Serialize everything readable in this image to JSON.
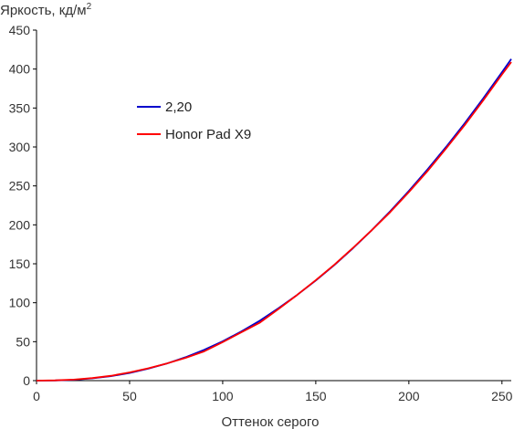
{
  "chart_data": {
    "type": "line",
    "ylabel": "Яркость, кд/м",
    "ylabel_superscript": "2",
    "xlabel": "Оттенок серого",
    "xlim": [
      0,
      255
    ],
    "ylim": [
      0,
      450
    ],
    "xticks": [
      0,
      50,
      100,
      150,
      200,
      250
    ],
    "yticks": [
      0,
      50,
      100,
      150,
      200,
      250,
      300,
      350,
      400,
      450
    ],
    "grid": false,
    "legend_position": "upper-left",
    "series": [
      {
        "name": "2,20",
        "color": "#0000cc",
        "x": [
          0,
          10,
          20,
          30,
          40,
          50,
          60,
          70,
          80,
          90,
          100,
          110,
          120,
          130,
          140,
          150,
          160,
          170,
          180,
          190,
          200,
          210,
          220,
          230,
          240,
          250,
          255
        ],
        "y": [
          0,
          0.2,
          1.1,
          2.9,
          5.8,
          9.9,
          15.3,
          21.9,
          30,
          39.5,
          50.5,
          63,
          77,
          93,
          110,
          128.5,
          148.5,
          170,
          193,
          217.5,
          243.5,
          271,
          300,
          330.5,
          362.5,
          396,
          413
        ]
      },
      {
        "name": "Honor Pad X9",
        "color": "#ff0000",
        "x": [
          0,
          10,
          20,
          30,
          40,
          50,
          60,
          70,
          80,
          90,
          100,
          110,
          120,
          130,
          140,
          150,
          160,
          170,
          180,
          190,
          200,
          210,
          220,
          230,
          240,
          250,
          255
        ],
        "y": [
          0,
          0.3,
          1.3,
          3.3,
          6.2,
          10.5,
          15.8,
          22,
          29.2,
          37.5,
          49.5,
          62,
          74.5,
          92,
          110,
          129,
          149,
          170.5,
          193,
          216.5,
          242,
          269,
          298,
          328,
          360,
          393,
          409
        ]
      }
    ]
  }
}
